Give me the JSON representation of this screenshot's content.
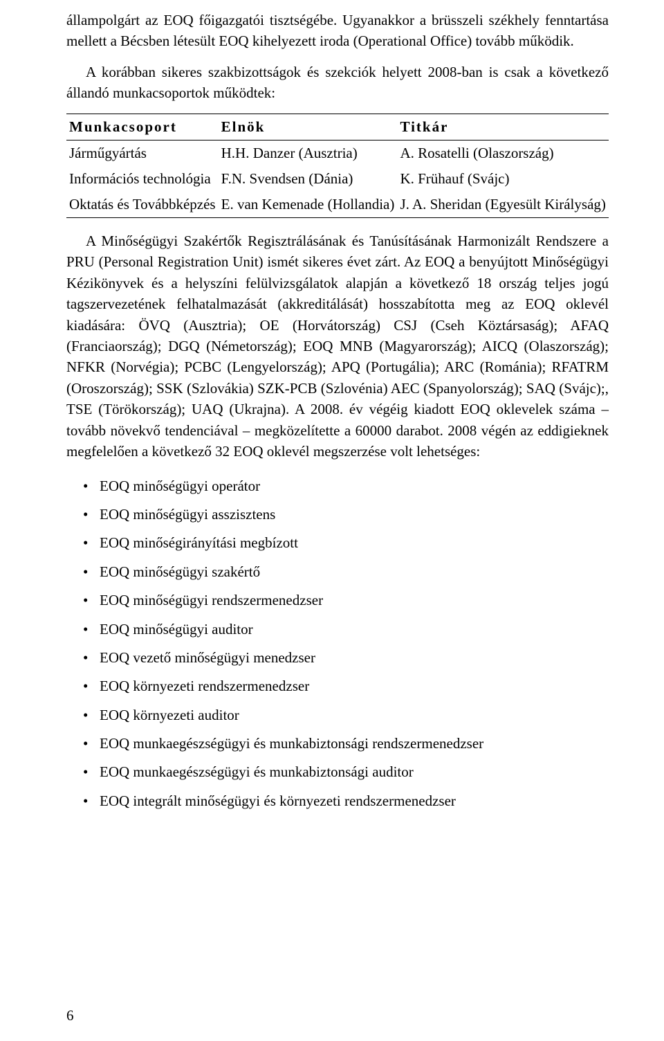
{
  "colors": {
    "text": "#000000",
    "background": "#ffffff",
    "rule": "#000000"
  },
  "typography": {
    "family": "Times New Roman",
    "body_size_pt": 16,
    "line_height": 1.45
  },
  "para1": "állampolgárt az EOQ főigazgatói tisztségébe. Ugyanakkor a brüsszeli székhely fenntartása mellett a Bécsben létesült EOQ kihelyezett iroda (Operational Office) tovább működik.",
  "para2": "A korábban sikeres szakbizottságok és szekciók helyett 2008-ban is csak a következő állandó munkacsoportok működtek:",
  "table": {
    "headers": {
      "c1": "Munkacsoport",
      "c2": "Elnök",
      "c3": "Titkár"
    },
    "rows": [
      {
        "c1": "Járműgyártás",
        "c2": "H.H. Danzer (Ausztria)",
        "c3": "A. Rosatelli (Olaszország)"
      },
      {
        "c1": "Információs technológia",
        "c2": "F.N. Svendsen (Dánia)",
        "c3": "K. Frühauf (Svájc)"
      },
      {
        "c1": "Oktatás és Továbbképzés",
        "c2": "E. van Kemenade (Hollandia)",
        "c3": "J. A. Sheridan (Egyesült Királyság)"
      }
    ]
  },
  "para3": "A Minőségügyi Szakértők Regisztrálásának és Tanúsításának Harmonizált Rendszere a PRU (Personal Registration Unit) ismét sikeres évet zárt. Az EOQ a benyújtott Minőségügyi Kézikönyvek és a helyszíni felülvizsgálatok alapján a következő 18 ország teljes jogú tagszervezetének felhatalmazását (akkreditálását) hosszabította meg az EOQ oklevél kiadására: ÖVQ (Ausztria); OE (Horvátország) CSJ (Cseh Köztársaság); AFAQ (Franciaország); DGQ (Németország); EOQ MNB (Magyarország); AICQ (Olaszország); NFKR (Norvégia); PCBC (Lengyelország); APQ (Portugália); ARC (Románia); RFATRM (Oroszország); SSK (Szlovákia) SZK-PCB (Szlovénia) AEC (Spanyolország); SAQ (Svájc);, TSE (Törökország); UAQ (Ukrajna). A 2008. év végéig kiadott EOQ oklevelek száma – tovább növekvő tendenciával – megközelítette a 60000 darabot. 2008 végén az eddigieknek megfelelően a következő 32 EOQ oklevél megszerzése volt lehetséges:",
  "bullets": [
    "EOQ minőségügyi operátor",
    "EOQ minőségügyi asszisztens",
    "EOQ minőségirányítási megbízott",
    "EOQ minőségügyi szakértő",
    "EOQ minőségügyi rendszermenedzser",
    "EOQ minőségügyi auditor",
    "EOQ vezető minőségügyi menedzser",
    "EOQ környezeti rendszermenedzser",
    "EOQ környezeti auditor",
    "EOQ munkaegészségügyi és munkabiztonsági rendszermenedzser",
    "EOQ munkaegészségügyi és munkabiztonsági auditor",
    "EOQ integrált minőségügyi és környezeti rendszermenedzser"
  ],
  "page_number": "6"
}
